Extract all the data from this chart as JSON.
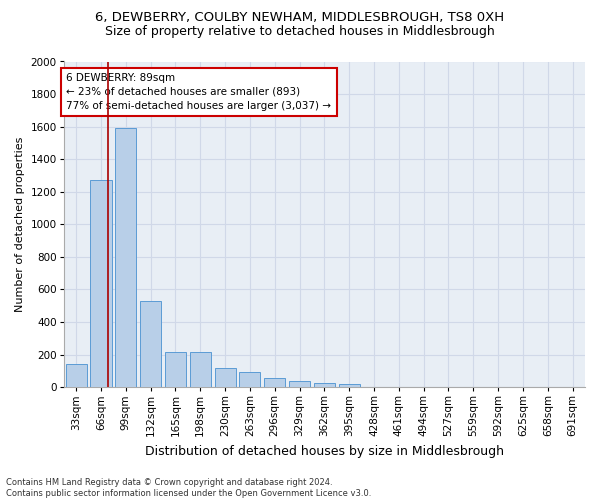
{
  "title": "6, DEWBERRY, COULBY NEWHAM, MIDDLESBROUGH, TS8 0XH",
  "subtitle": "Size of property relative to detached houses in Middlesbrough",
  "xlabel": "Distribution of detached houses by size in Middlesbrough",
  "ylabel": "Number of detached properties",
  "categories": [
    "33sqm",
    "66sqm",
    "99sqm",
    "132sqm",
    "165sqm",
    "198sqm",
    "230sqm",
    "263sqm",
    "296sqm",
    "329sqm",
    "362sqm",
    "395sqm",
    "428sqm",
    "461sqm",
    "494sqm",
    "527sqm",
    "559sqm",
    "592sqm",
    "625sqm",
    "658sqm",
    "691sqm"
  ],
  "values": [
    140,
    1270,
    1590,
    530,
    215,
    215,
    115,
    90,
    55,
    35,
    25,
    20,
    0,
    0,
    0,
    0,
    0,
    0,
    0,
    0,
    0
  ],
  "bar_color": "#b8cfe8",
  "bar_edge_color": "#5b9bd5",
  "vline_x": 1.27,
  "vline_color": "#aa0000",
  "annotation_text": "6 DEWBERRY: 89sqm\n← 23% of detached houses are smaller (893)\n77% of semi-detached houses are larger (3,037) →",
  "annotation_box_facecolor": "#ffffff",
  "annotation_box_edgecolor": "#cc0000",
  "plot_bg_color": "#e8eef5",
  "footer_line1": "Contains HM Land Registry data © Crown copyright and database right 2024.",
  "footer_line2": "Contains public sector information licensed under the Open Government Licence v3.0.",
  "ylim_max": 2000,
  "yticks": [
    0,
    200,
    400,
    600,
    800,
    1000,
    1200,
    1400,
    1600,
    1800,
    2000
  ],
  "grid_color": "#d0d8e8",
  "title_fontsize": 9.5,
  "subtitle_fontsize": 9,
  "ylabel_fontsize": 8,
  "xlabel_fontsize": 9,
  "tick_fontsize": 7.5,
  "annotation_fontsize": 7.5,
  "footer_fontsize": 6
}
